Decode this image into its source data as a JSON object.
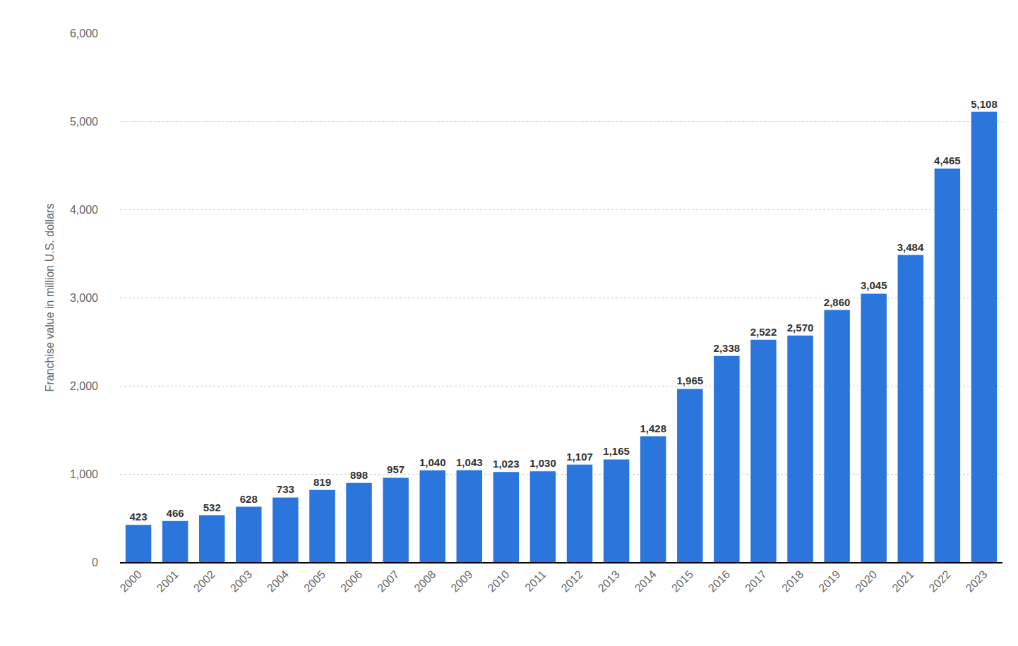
{
  "chart_data": {
    "type": "bar",
    "y_label": "Franchise value in million U.S. dollars",
    "categories": [
      "2000",
      "2001",
      "2002",
      "2003",
      "2004",
      "2005",
      "2006",
      "2007",
      "2008",
      "2009",
      "2010",
      "2011",
      "2012",
      "2013",
      "2014",
      "2015",
      "2016",
      "2017",
      "2018",
      "2019",
      "2020",
      "2021",
      "2022",
      "2023"
    ],
    "values": [
      423,
      466,
      532,
      628,
      733,
      819,
      898,
      957,
      1040,
      1043,
      1023,
      1030,
      1107,
      1165,
      1428,
      1965,
      2338,
      2522,
      2570,
      2860,
      3045,
      3484,
      4465,
      5108
    ],
    "value_labels": [
      "423",
      "466",
      "532",
      "628",
      "733",
      "819",
      "898",
      "957",
      "1,040",
      "1,043",
      "1,023",
      "1,030",
      "1,107",
      "1,165",
      "1,428",
      "1,965",
      "2,338",
      "2,522",
      "2,570",
      "2,860",
      "3,045",
      "3,484",
      "4,465",
      "5,108"
    ],
    "color": "#2a76dd",
    "ylim": [
      0,
      6000
    ],
    "yticks": [
      0,
      {
        "value": 1000,
        "label": "1,000"
      },
      {
        "value": 2000,
        "label": "2,000"
      },
      {
        "value": 3000,
        "label": "3,000"
      },
      {
        "value": 4000,
        "label": "4,000"
      },
      {
        "value": 5000,
        "label": "5,000"
      },
      {
        "value": 6000,
        "label": "6,000"
      }
    ],
    "grid": true,
    "data_labels": true
  }
}
